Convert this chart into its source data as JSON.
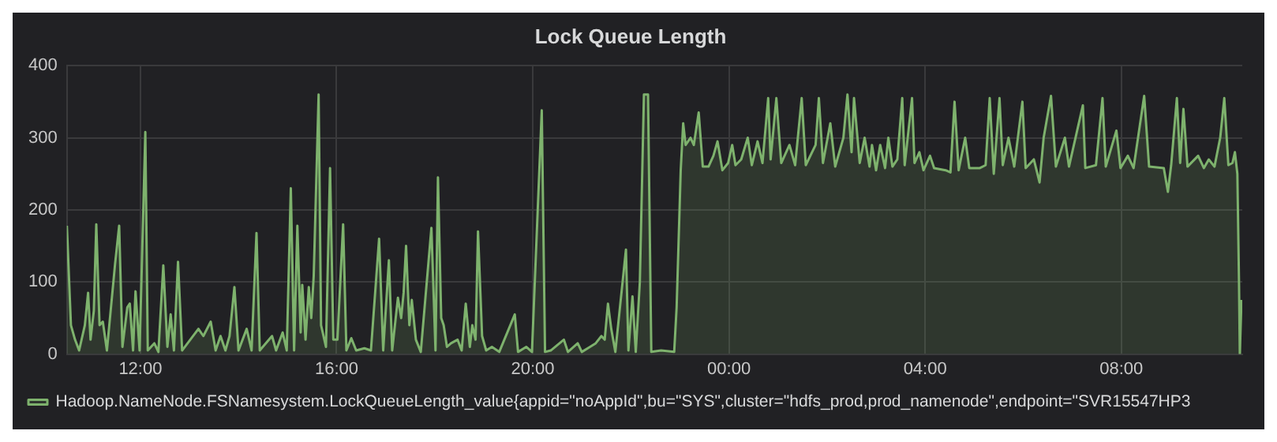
{
  "chart_data": {
    "type": "area",
    "title": "Lock Queue Length",
    "xlim": [
      "--01-01T10:30",
      "--01-02T10:28"
    ],
    "ylim": [
      0,
      400
    ],
    "xticks": [
      {
        "value": "--01-01T12:00",
        "label": "12:00"
      },
      {
        "value": "--01-01T16:00",
        "label": "16:00"
      },
      {
        "value": "--01-01T20:00",
        "label": "20:00"
      },
      {
        "value": "--01-02T00:00",
        "label": "00:00"
      },
      {
        "value": "--01-02T04:00",
        "label": "04:00"
      },
      {
        "value": "--01-02T08:00",
        "label": "08:00"
      }
    ],
    "yticks": [
      0,
      100,
      200,
      300,
      400
    ],
    "grid": true,
    "legend": "bottom left",
    "series": [
      {
        "name": "Hadoop.NameNode.FSNamesystem.LockQueueLength_value{appid=\"noAppId\",bu=\"SYS\",cluster=\"hdfs_prod,prod_namenode\",endpoint=\"SVR15547HP3",
        "color": "#7eb26d",
        "x": [
          "--01-01T10:30",
          "--01-01T10:35",
          "--01-01T10:40",
          "--01-01T10:45",
          "--01-01T10:52",
          "--01-01T10:56",
          "--01-01T10:59",
          "--01-01T11:03",
          "--01-01T11:06",
          "--01-01T11:10",
          "--01-01T11:14",
          "--01-01T11:19",
          "--01-01T11:29",
          "--01-01T11:34",
          "--01-01T11:38",
          "--01-01T11:44",
          "--01-01T11:47",
          "--01-01T11:51",
          "--01-01T11:54",
          "--01-01T11:59",
          "--01-01T12:06",
          "--01-01T12:09",
          "--01-01T12:17",
          "--01-01T12:22",
          "--01-01T12:28",
          "--01-01T12:33",
          "--01-01T12:37",
          "--01-01T12:41",
          "--01-01T12:46",
          "--01-01T12:51",
          "--01-01T13:11",
          "--01-01T13:17",
          "--01-01T13:26",
          "--01-01T13:32",
          "--01-01T13:38",
          "--01-01T13:44",
          "--01-01T13:49",
          "--01-01T13:55",
          "--01-01T14:00",
          "--01-01T14:10",
          "--01-01T14:16",
          "--01-01T14:22",
          "--01-01T14:26",
          "--01-01T14:41",
          "--01-01T14:46",
          "--01-01T14:54",
          "--01-01T14:59",
          "--01-01T15:04",
          "--01-01T15:08",
          "--01-01T15:12",
          "--01-01T15:16",
          "--01-01T15:18",
          "--01-01T15:22",
          "--01-01T15:26",
          "--01-01T15:29",
          "--01-01T15:32",
          "--01-01T15:38",
          "--01-01T15:41",
          "--01-01T15:47",
          "--01-01T15:52",
          "--01-01T15:56",
          "--01-01T16:01",
          "--01-01T16:08",
          "--01-01T16:12",
          "--01-01T16:18",
          "--01-01T16:24",
          "--01-01T16:34",
          "--01-01T16:42",
          "--01-01T16:52",
          "--01-01T16:57",
          "--01-01T17:04",
          "--01-01T17:08",
          "--01-01T17:15",
          "--01-01T17:19",
          "--01-01T17:22",
          "--01-01T17:25",
          "--01-01T17:29",
          "--01-01T17:32",
          "--01-01T17:37",
          "--01-01T17:43",
          "--01-01T17:56",
          "--01-01T18:01",
          "--01-01T18:04",
          "--01-01T18:08",
          "--01-01T18:11",
          "--01-01T18:15",
          "--01-01T18:20",
          "--01-01T18:28",
          "--01-01T18:33",
          "--01-01T18:38",
          "--01-01T18:43",
          "--01-01T18:46",
          "--01-01T18:50",
          "--01-01T18:53",
          "--01-01T18:58",
          "--01-01T19:03",
          "--01-01T19:10",
          "--01-01T19:19",
          "--01-01T19:38",
          "--01-01T19:42",
          "--01-01T19:52",
          "--01-01T19:59",
          "--01-01T20:11",
          "--01-01T20:15",
          "--01-01T20:22",
          "--01-01T20:38",
          "--01-01T20:43",
          "--01-01T20:55",
          "--01-01T21:00",
          "--01-01T21:10",
          "--01-01T21:17",
          "--01-01T21:24",
          "--01-01T21:28",
          "--01-01T21:32",
          "--01-01T21:36",
          "--01-01T21:41",
          "--01-01T21:54",
          "--01-01T21:57",
          "--01-01T22:02",
          "--01-01T22:06",
          "--01-01T22:11",
          "--01-01T22:16",
          "--01-01T22:21",
          "--01-01T22:25",
          "--01-01T22:37",
          "--01-01T22:53",
          "--01-01T22:56",
          "--01-01T23:01",
          "--01-01T23:04",
          "--01-01T23:07",
          "--01-01T23:13",
          "--01-01T23:17",
          "--01-01T23:23",
          "--01-01T23:28",
          "--01-01T23:35",
          "--01-01T23:41",
          "--01-01T23:46",
          "--01-01T23:52",
          "--01-01T23:59",
          "--01-02T00:04",
          "--01-02T00:08",
          "--01-02T00:15",
          "--01-02T00:23",
          "--01-02T00:28",
          "--01-02T00:35",
          "--01-02T00:41",
          "--01-02T00:48",
          "--01-02T00:51",
          "--01-02T00:58",
          "--01-02T01:04",
          "--01-02T01:14",
          "--01-02T01:21",
          "--01-02T01:29",
          "--01-02T01:34",
          "--01-02T01:46",
          "--01-02T01:50",
          "--01-02T01:55",
          "--01-02T02:04",
          "--01-02T02:10",
          "--01-02T02:20",
          "--01-02T02:25",
          "--01-02T02:30",
          "--01-02T02:33",
          "--01-02T02:40",
          "--01-02T02:46",
          "--01-02T02:52",
          "--01-02T02:55",
          "--01-02T03:00",
          "--01-02T03:05",
          "--01-02T03:11",
          "--01-02T03:15",
          "--01-02T03:20",
          "--01-02T03:26",
          "--01-02T03:32",
          "--01-02T03:35",
          "--01-02T03:44",
          "--01-02T03:47",
          "--01-02T03:53",
          "--01-02T03:58",
          "--01-02T04:06",
          "--01-02T04:11",
          "--01-02T04:25",
          "--01-02T04:31",
          "--01-02T04:36",
          "--01-02T04:41",
          "--01-02T04:49",
          "--01-02T04:54",
          "--01-02T05:07",
          "--01-02T05:14",
          "--01-02T05:19",
          "--01-02T05:24",
          "--01-02T05:31",
          "--01-02T05:35",
          "--01-02T05:42",
          "--01-02T05:49",
          "--01-02T05:59",
          "--01-02T06:03",
          "--01-02T06:13",
          "--01-02T06:20",
          "--01-02T06:25",
          "--01-02T06:34",
          "--01-02T06:40",
          "--01-02T06:51",
          "--01-02T06:56",
          "--01-02T07:13",
          "--01-02T07:16",
          "--01-02T07:29",
          "--01-02T07:37",
          "--01-02T07:41",
          "--01-02T07:54",
          "--01-02T07:59",
          "--01-02T08:08",
          "--01-02T08:15",
          "--01-02T08:28",
          "--01-02T08:34",
          "--01-02T08:52",
          "--01-02T08:57",
          "--01-02T09:01",
          "--01-02T09:08",
          "--01-02T09:12",
          "--01-02T09:16",
          "--01-02T09:21",
          "--01-02T09:34",
          "--01-02T09:41",
          "--01-02T09:47",
          "--01-02T09:54",
          "--01-02T10:01",
          "--01-02T10:06",
          "--01-02T10:11",
          "--01-02T10:16",
          "--01-02T10:19",
          "--01-02T10:22",
          "--01-02T10:24",
          "--01-02T10:25",
          "--01-02T10:27"
        ],
        "values": [
          178,
          40,
          20,
          5,
          40,
          85,
          20,
          60,
          180,
          40,
          45,
          5,
          125,
          178,
          10,
          65,
          70,
          5,
          87,
          5,
          308,
          5,
          15,
          3,
          123,
          10,
          55,
          5,
          128,
          5,
          35,
          25,
          45,
          5,
          25,
          5,
          25,
          93,
          5,
          35,
          5,
          168,
          5,
          25,
          5,
          30,
          5,
          230,
          5,
          178,
          30,
          96,
          20,
          93,
          50,
          108,
          360,
          40,
          10,
          258,
          20,
          20,
          180,
          5,
          22,
          5,
          8,
          5,
          160,
          5,
          130,
          5,
          78,
          50,
          85,
          150,
          40,
          75,
          20,
          3,
          175,
          5,
          245,
          50,
          40,
          10,
          15,
          20,
          5,
          70,
          10,
          40,
          20,
          170,
          25,
          5,
          10,
          3,
          55,
          3,
          10,
          3,
          338,
          3,
          5,
          20,
          3,
          15,
          3,
          10,
          15,
          25,
          20,
          70,
          35,
          3,
          145,
          5,
          80,
          3,
          100,
          360,
          360,
          3,
          5,
          3,
          65,
          255,
          320,
          290,
          300,
          290,
          335,
          260,
          260,
          275,
          295,
          255,
          265,
          290,
          262,
          270,
          300,
          262,
          295,
          265,
          355,
          270,
          355,
          265,
          290,
          262,
          355,
          262,
          290,
          355,
          265,
          320,
          260,
          300,
          360,
          280,
          355,
          265,
          300,
          260,
          290,
          255,
          290,
          258,
          300,
          260,
          270,
          355,
          262,
          355,
          265,
          280,
          255,
          275,
          258,
          255,
          252,
          350,
          255,
          300,
          258,
          258,
          262,
          355,
          250,
          355,
          262,
          300,
          260,
          350,
          258,
          270,
          238,
          300,
          358,
          260,
          300,
          260,
          345,
          258,
          262,
          355,
          260,
          310,
          258,
          275,
          258,
          358,
          260,
          258,
          225,
          262,
          355,
          265,
          340,
          260,
          275,
          258,
          270,
          260,
          300,
          355,
          262,
          265,
          280,
          250,
          100,
          0,
          75
        ]
      }
    ]
  }
}
